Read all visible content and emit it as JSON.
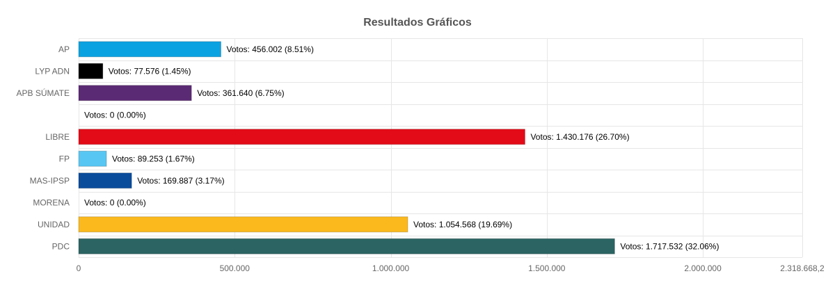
{
  "chart_data": {
    "type": "bar",
    "orientation": "horizontal",
    "title": "Resultados Gráficos",
    "xlabel": "",
    "ylabel": "",
    "xlim": [
      0,
      2318668.2
    ],
    "grid": true,
    "legend": "none",
    "categories": [
      "AP",
      "LYP ADN",
      "APB SÚMATE",
      "",
      "LIBRE",
      "FP",
      "MAS-IPSP",
      "MORENA",
      "UNIDAD",
      "PDC"
    ],
    "values": [
      456002,
      77576,
      361640,
      0,
      1430176,
      89253,
      169887,
      0,
      1054568,
      1717532
    ],
    "data_labels": [
      "Votos: 456.002 (8.51%)",
      "Votos: 77.576 (1.45%)",
      "Votos: 361.640 (6.75%)",
      "Votos: 0 (0.00%)",
      "Votos: 1.430.176 (26.70%)",
      "Votos: 89.253 (1.67%)",
      "Votos: 169.887 (3.17%)",
      "Votos: 0 (0.00%)",
      "Votos: 1.054.568 (19.69%)",
      "Votos: 1.717.532 (32.06%)"
    ],
    "colors": [
      "#0aa2e0",
      "#000000",
      "#5b2a74",
      "#cccccc",
      "#e30b17",
      "#58c6f2",
      "#0a4c9c",
      "#8b1a1a",
      "#fbb91d",
      "#2b6463"
    ],
    "x_ticks": [
      {
        "value": 0,
        "label": "0"
      },
      {
        "value": 500000,
        "label": "500.000"
      },
      {
        "value": 1000000,
        "label": "1.000.000"
      },
      {
        "value": 1500000,
        "label": "1.500.000"
      },
      {
        "value": 2000000,
        "label": "2.000.000"
      },
      {
        "value": 2318668.2,
        "label": "2.318.668,2"
      }
    ]
  }
}
